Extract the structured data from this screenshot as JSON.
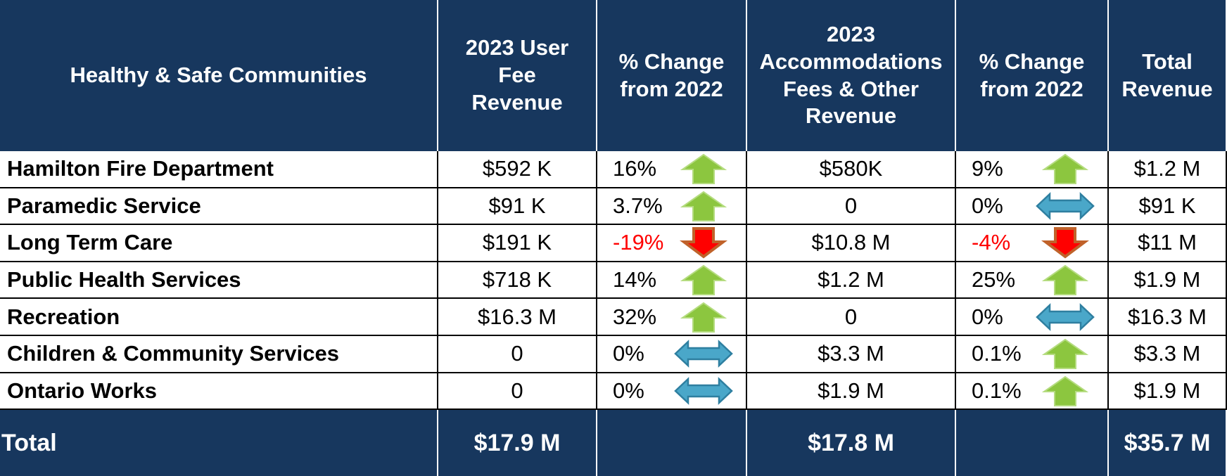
{
  "header": {
    "columns": [
      [
        "Healthy & Safe Communities"
      ],
      [
        "2023 User",
        "Fee",
        "Revenue"
      ],
      [
        "% Change",
        "from 2022"
      ],
      [
        "2023",
        "Accommodations",
        "Fees & Other",
        "Revenue"
      ],
      [
        "% Change",
        "from 2022"
      ],
      [
        "Total",
        "Revenue"
      ]
    ]
  },
  "rows": [
    {
      "name": "Hamilton Fire Department",
      "user_fee": "$592 K",
      "user_fee_change": "16%",
      "user_fee_trend": "up",
      "accommodations": "$580K",
      "accommodations_change": "9%",
      "accommodations_trend": "up",
      "total": "$1.2 M"
    },
    {
      "name": "Paramedic Service",
      "user_fee": "$91 K",
      "user_fee_change": "3.7%",
      "user_fee_trend": "up",
      "accommodations": "0",
      "accommodations_change": "0%",
      "accommodations_trend": "flat",
      "total": "$91 K"
    },
    {
      "name": "Long Term Care",
      "user_fee": "$191 K",
      "user_fee_change": "-19%",
      "user_fee_trend": "down",
      "accommodations": "$10.8 M",
      "accommodations_change": "-4%",
      "accommodations_trend": "down",
      "total": "$11 M"
    },
    {
      "name": "Public Health Services",
      "user_fee": "$718 K",
      "user_fee_change": "14%",
      "user_fee_trend": "up",
      "accommodations": "$1.2 M",
      "accommodations_change": "25%",
      "accommodations_trend": "up",
      "total": "$1.9 M"
    },
    {
      "name": "Recreation",
      "user_fee": "$16.3 M",
      "user_fee_change": "32%",
      "user_fee_trend": "up",
      "accommodations": "0",
      "accommodations_change": "0%",
      "accommodations_trend": "flat",
      "total": "$16.3 M"
    },
    {
      "name": "Children & Community Services",
      "user_fee": "0",
      "user_fee_change": "0%",
      "user_fee_trend": "flat",
      "accommodations": "$3.3 M",
      "accommodations_change": "0.1%",
      "accommodations_trend": "up",
      "total": "$3.3 M"
    },
    {
      "name": "Ontario Works",
      "user_fee": "0",
      "user_fee_change": "0%",
      "user_fee_trend": "flat",
      "accommodations": "$1.9 M",
      "accommodations_change": "0.1%",
      "accommodations_trend": "up",
      "total": "$1.9 M"
    }
  ],
  "total": {
    "label": "Total",
    "user_fee": "$17.9 M",
    "accommodations": "$17.8 M",
    "total": "$35.7 M"
  }
}
